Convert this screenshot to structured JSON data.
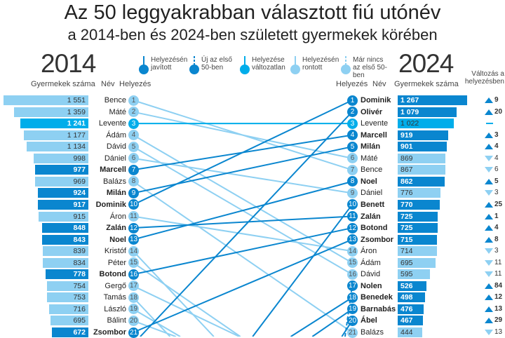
{
  "title": "Az 50 leggyakrabban választott fiú utónév",
  "subtitle": "a 2014-ben és 2024-ben született gyermekek körében",
  "colors": {
    "improved": "#0a86cf",
    "unchanged": "#00adea",
    "worsened": "#8ed0f2",
    "new": "#0a86cf"
  },
  "legend": [
    {
      "label": "Helyezésén javított",
      "type": "improved"
    },
    {
      "label": "Új az első 50-ben",
      "type": "new"
    },
    {
      "label": "Helyezése változatlan",
      "type": "unchanged"
    },
    {
      "label": "Helyezésén rontott",
      "type": "worsened"
    },
    {
      "label": "Már nincs az első 50-ben",
      "type": "dropped"
    }
  ],
  "chart_data": {
    "type": "slope",
    "left": {
      "year": "2014",
      "count_header": "Gyermekek száma",
      "name_header": "Név",
      "rank_header": "Helyezés",
      "rows": [
        {
          "rank": 1,
          "name": "Bence",
          "count": "1 551",
          "value": 1551,
          "status": "worsened",
          "rank2024": 7
        },
        {
          "rank": 2,
          "name": "Máté",
          "count": "1 359",
          "value": 1359,
          "status": "worsened",
          "rank2024": 6
        },
        {
          "rank": 3,
          "name": "Levente",
          "count": "1 241",
          "value": 1241,
          "status": "unchanged",
          "rank2024": 3
        },
        {
          "rank": 4,
          "name": "Ádám",
          "count": "1 177",
          "value": 1177,
          "status": "worsened",
          "rank2024": 15
        },
        {
          "rank": 5,
          "name": "Dávid",
          "count": "1 134",
          "value": 1134,
          "status": "worsened",
          "rank2024": 16
        },
        {
          "rank": 6,
          "name": "Dániel",
          "count": "998",
          "value": 998,
          "status": "worsened",
          "rank2024": 9
        },
        {
          "rank": 7,
          "name": "Marcell",
          "count": "977",
          "value": 977,
          "status": "improved",
          "rank2024": 4
        },
        {
          "rank": 8,
          "name": "Balázs",
          "count": "969",
          "value": 969,
          "status": "worsened",
          "rank2024": 21
        },
        {
          "rank": 9,
          "name": "Milán",
          "count": "924",
          "value": 924,
          "status": "improved",
          "rank2024": 5
        },
        {
          "rank": 10,
          "name": "Dominik",
          "count": "917",
          "value": 917,
          "status": "improved",
          "rank2024": 1
        },
        {
          "rank": 11,
          "name": "Áron",
          "count": "915",
          "value": 915,
          "status": "worsened",
          "rank2024": 14
        },
        {
          "rank": 12,
          "name": "Zalán",
          "count": "848",
          "value": 848,
          "status": "improved",
          "rank2024": 11
        },
        {
          "rank": 13,
          "name": "Noel",
          "count": "843",
          "value": 843,
          "status": "improved",
          "rank2024": 8
        },
        {
          "rank": 14,
          "name": "Kristóf",
          "count": "839",
          "value": 839,
          "status": "worsened",
          "rank2024": null
        },
        {
          "rank": 15,
          "name": "Péter",
          "count": "834",
          "value": 834,
          "status": "worsened",
          "rank2024": null
        },
        {
          "rank": 16,
          "name": "Botond",
          "count": "778",
          "value": 778,
          "status": "improved",
          "rank2024": 12
        },
        {
          "rank": 17,
          "name": "Gergő",
          "count": "754",
          "value": 754,
          "status": "worsened",
          "rank2024": null
        },
        {
          "rank": 18,
          "name": "Tamás",
          "count": "753",
          "value": 753,
          "status": "worsened",
          "rank2024": null
        },
        {
          "rank": 19,
          "name": "László",
          "count": "716",
          "value": 716,
          "status": "worsened",
          "rank2024": null
        },
        {
          "rank": 20,
          "name": "Bálint",
          "count": "695",
          "value": 695,
          "status": "worsened",
          "rank2024": null
        },
        {
          "rank": 21,
          "name": "Zsombor",
          "count": "672",
          "value": 672,
          "status": "improved",
          "rank2024": 13
        }
      ]
    },
    "right": {
      "year": "2024",
      "count_header": "Gyermekek száma",
      "name_header": "Név",
      "rank_header": "Helyezés",
      "change_header": "Változás a helyezésben",
      "rows": [
        {
          "rank": 1,
          "name": "Dominik",
          "count": "1 267",
          "value": 1267,
          "status": "improved",
          "change": "9",
          "dir": "up"
        },
        {
          "rank": 2,
          "name": "Olivér",
          "count": "1 079",
          "value": 1079,
          "status": "improved",
          "change": "20",
          "dir": "up"
        },
        {
          "rank": 3,
          "name": "Levente",
          "count": "1 022",
          "value": 1022,
          "status": "unchanged",
          "change": "",
          "dir": "same"
        },
        {
          "rank": 4,
          "name": "Marcell",
          "count": "919",
          "value": 919,
          "status": "improved",
          "change": "3",
          "dir": "up"
        },
        {
          "rank": 5,
          "name": "Milán",
          "count": "901",
          "value": 901,
          "status": "improved",
          "change": "4",
          "dir": "up"
        },
        {
          "rank": 6,
          "name": "Máté",
          "count": "869",
          "value": 869,
          "status": "worsened",
          "change": "4",
          "dir": "down"
        },
        {
          "rank": 7,
          "name": "Bence",
          "count": "867",
          "value": 867,
          "status": "worsened",
          "change": "6",
          "dir": "down"
        },
        {
          "rank": 8,
          "name": "Noel",
          "count": "862",
          "value": 862,
          "status": "improved",
          "change": "5",
          "dir": "up"
        },
        {
          "rank": 9,
          "name": "Dániel",
          "count": "776",
          "value": 776,
          "status": "worsened",
          "change": "3",
          "dir": "down"
        },
        {
          "rank": 10,
          "name": "Benett",
          "count": "770",
          "value": 770,
          "status": "improved",
          "change": "25",
          "dir": "up"
        },
        {
          "rank": 11,
          "name": "Zalán",
          "count": "725",
          "value": 725,
          "status": "improved",
          "change": "1",
          "dir": "up"
        },
        {
          "rank": 12,
          "name": "Botond",
          "count": "725",
          "value": 725,
          "status": "improved",
          "change": "4",
          "dir": "up"
        },
        {
          "rank": 13,
          "name": "Zsombor",
          "count": "715",
          "value": 715,
          "status": "improved",
          "change": "8",
          "dir": "up"
        },
        {
          "rank": 14,
          "name": "Áron",
          "count": "714",
          "value": 714,
          "status": "worsened",
          "change": "3",
          "dir": "down"
        },
        {
          "rank": 15,
          "name": "Ádám",
          "count": "695",
          "value": 695,
          "status": "worsened",
          "change": "11",
          "dir": "down"
        },
        {
          "rank": 16,
          "name": "Dávid",
          "count": "595",
          "value": 595,
          "status": "worsened",
          "change": "11",
          "dir": "down"
        },
        {
          "rank": 17,
          "name": "Nolen",
          "count": "526",
          "value": 526,
          "status": "new",
          "change": "84",
          "dir": "up"
        },
        {
          "rank": 18,
          "name": "Benedek",
          "count": "498",
          "value": 498,
          "status": "improved",
          "change": "12",
          "dir": "up"
        },
        {
          "rank": 19,
          "name": "Barnabás",
          "count": "476",
          "value": 476,
          "status": "improved",
          "change": "13",
          "dir": "up"
        },
        {
          "rank": 20,
          "name": "Ábel",
          "count": "467",
          "value": 467,
          "status": "improved",
          "change": "29",
          "dir": "up"
        },
        {
          "rank": 21,
          "name": "Balázs",
          "count": "444",
          "value": 444,
          "status": "worsened",
          "change": "13",
          "dir": "down"
        }
      ]
    }
  }
}
